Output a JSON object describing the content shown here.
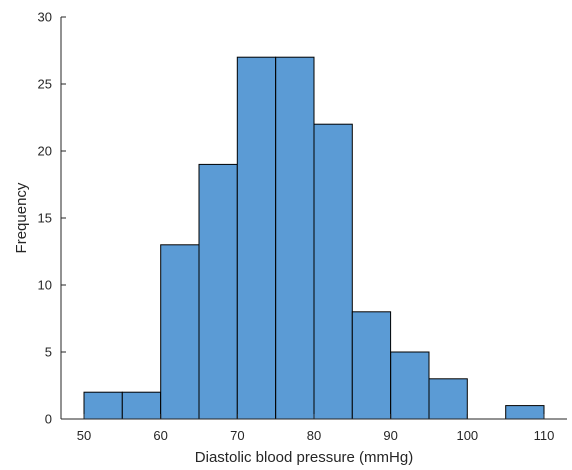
{
  "chart_data": {
    "type": "bar",
    "histogram": true,
    "bin_width": 5,
    "bin_edges": [
      50,
      55,
      60,
      65,
      70,
      75,
      80,
      85,
      90,
      95,
      100,
      105,
      110
    ],
    "values": [
      2,
      2,
      13,
      19,
      27,
      27,
      22,
      8,
      5,
      3,
      0,
      1
    ],
    "xlabel": "Diastolic blood pressure (mmHg)",
    "ylabel": "Frequency",
    "xlim": [
      47,
      113
    ],
    "ylim": [
      0,
      30
    ],
    "x_ticks": [
      50,
      60,
      70,
      80,
      90,
      100,
      110
    ],
    "y_ticks": [
      0,
      5,
      10,
      15,
      20,
      25,
      30
    ],
    "grid": false,
    "legend": "none",
    "bar_color": "#5b9bd5",
    "edge_color": "#000000"
  }
}
